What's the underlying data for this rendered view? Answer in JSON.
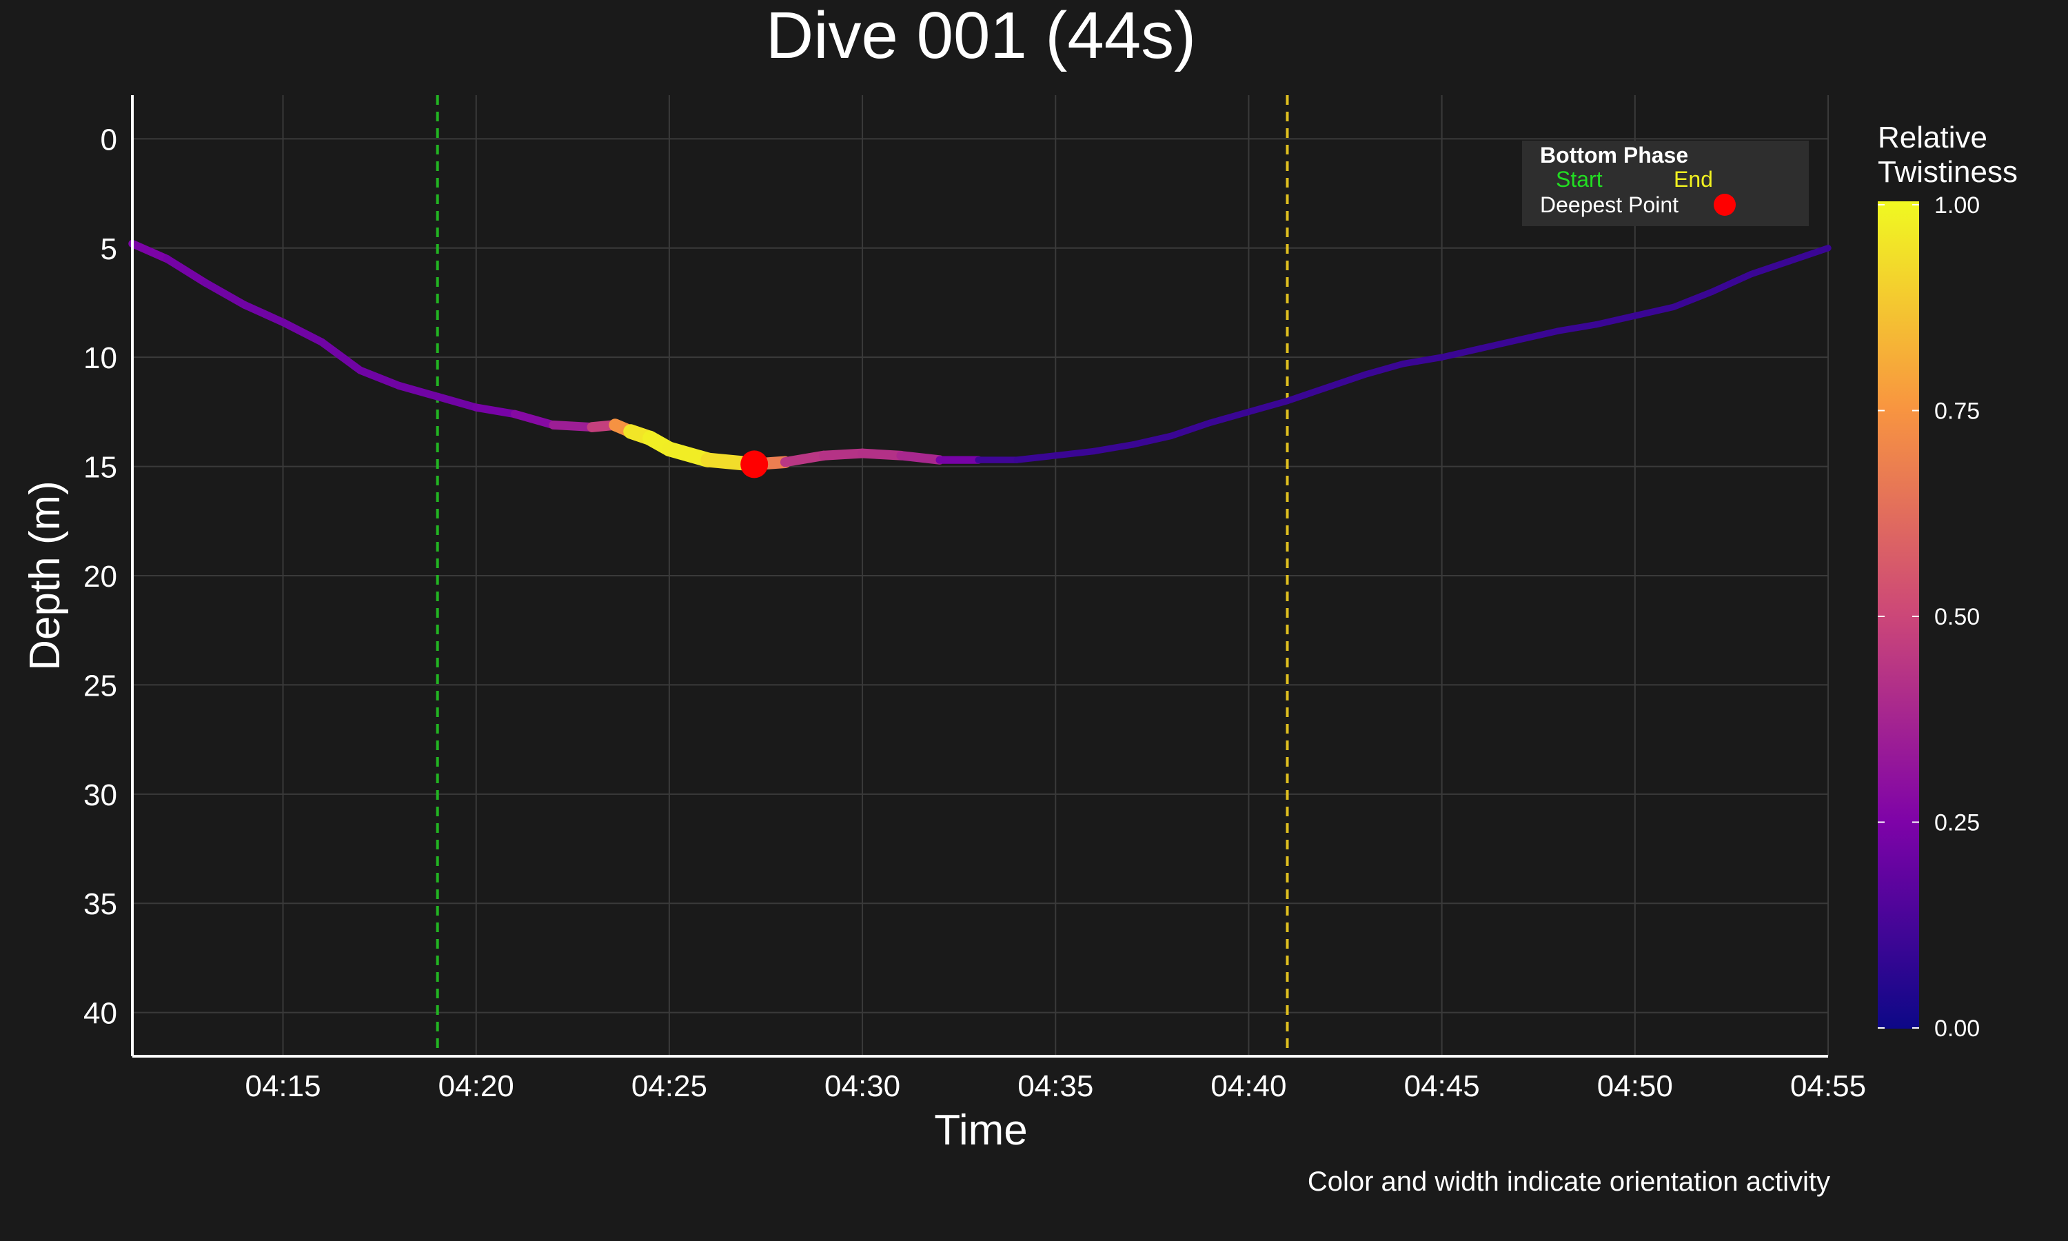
{
  "chart_data": {
    "type": "line",
    "title": "Dive 001 (44s)",
    "xlabel": "Time",
    "ylabel": "Depth (m)",
    "caption": "Color and width indicate orientation activity",
    "x_ticks": [
      "04:15",
      "04:20",
      "04:25",
      "04:30",
      "04:35",
      "04:40",
      "04:45",
      "04:50",
      "04:55"
    ],
    "y_ticks": [
      "0",
      "5",
      "10",
      "15",
      "20",
      "25",
      "30",
      "35",
      "40"
    ],
    "xlim_seconds": [
      11.1,
      55
    ],
    "ylim": [
      42,
      -2
    ],
    "y_inverted": true,
    "grid": true,
    "series": [
      {
        "x_seconds": [
          11.1,
          12,
          13,
          14,
          15,
          16,
          17,
          18,
          19,
          20,
          21,
          22,
          23,
          23.6,
          24,
          24.5,
          25,
          26,
          27.2,
          28,
          29,
          30,
          31,
          32,
          33,
          34,
          35,
          36,
          37,
          38,
          39,
          40,
          41,
          42,
          43,
          44,
          45,
          46,
          47,
          48,
          49,
          50,
          51,
          52,
          53,
          54,
          55
        ],
        "depth": [
          4.8,
          5.5,
          6.6,
          7.6,
          8.4,
          9.3,
          10.6,
          11.3,
          11.8,
          12.3,
          12.6,
          13.1,
          13.2,
          13.1,
          13.4,
          13.7,
          14.2,
          14.7,
          14.9,
          14.8,
          14.5,
          14.4,
          14.5,
          14.7,
          14.7,
          14.7,
          14.5,
          14.3,
          14.0,
          13.6,
          13.0,
          12.5,
          12.0,
          11.4,
          10.8,
          10.3,
          10.0,
          9.6,
          9.2,
          8.8,
          8.5,
          8.1,
          7.7,
          7.0,
          6.2,
          5.6,
          5.0
        ],
        "twistiness": [
          0.25,
          0.24,
          0.22,
          0.22,
          0.22,
          0.22,
          0.22,
          0.22,
          0.22,
          0.22,
          0.25,
          0.3,
          0.4,
          0.55,
          0.93,
          0.97,
          0.98,
          0.96,
          0.9,
          0.45,
          0.43,
          0.42,
          0.42,
          0.35,
          0.12,
          0.1,
          0.1,
          0.1,
          0.1,
          0.1,
          0.1,
          0.1,
          0.1,
          0.1,
          0.1,
          0.1,
          0.1,
          0.1,
          0.1,
          0.1,
          0.1,
          0.1,
          0.1,
          0.1,
          0.1,
          0.1,
          0.1
        ]
      }
    ],
    "bottom_phase": {
      "start_seconds": 19,
      "end_seconds": 41,
      "start_color": "#22b522",
      "end_color": "#e0c020"
    },
    "deepest_point": {
      "x_seconds": 27.2,
      "depth": 14.9,
      "color": "#ff0000"
    },
    "colorbar": {
      "title_line1": "Relative",
      "title_line2": "Twistiness",
      "ticks": [
        "1.00",
        "0.75",
        "0.50",
        "0.25",
        "0.00"
      ],
      "colormap": "plasma",
      "range": [
        0,
        1
      ]
    },
    "legend": {
      "title": "Bottom Phase",
      "start_label": "Start",
      "end_label": "End",
      "deepest_label": "Deepest Point",
      "position": "top-right"
    },
    "colors": {
      "background": "#1a1a1a",
      "text": "#ffffff",
      "grid": "#3a3a3a",
      "legend_bg": "#2e2e2e"
    }
  }
}
